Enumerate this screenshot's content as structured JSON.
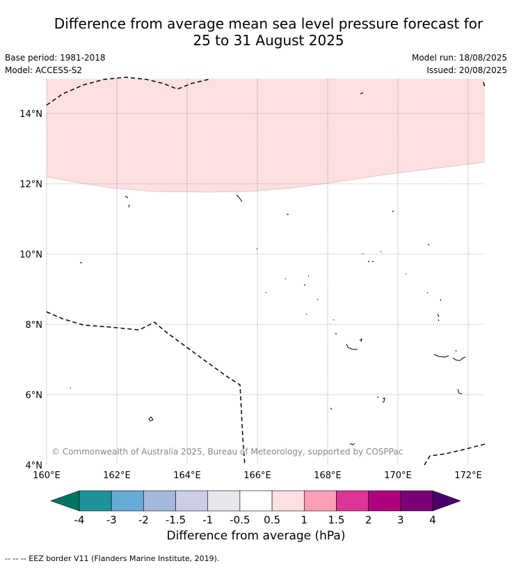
{
  "title_line1": "Difference from average mean sea level pressure forecast for",
  "title_line2": "25 to 31 August 2025",
  "base_period": "Base period: 1981-2018",
  "model": "Model: ACCESS-S2",
  "model_run": "Model run: 18/08/2025",
  "issued": "Issued: 20/08/2025",
  "copyright": "© Commonwealth of Australia 2025, Bureau of Meteorology, supported by COSPPac",
  "lat_labels": [
    "14°N",
    "12°N",
    "10°N",
    "8°N",
    "6°N",
    "4°N"
  ],
  "lon_labels": [
    "160°E",
    "162°E",
    "164°E",
    "166°E",
    "168°E",
    "170°E",
    "172°E"
  ],
  "colorbar": {
    "title": "Difference from average (hPa)",
    "tick_labels": [
      "-4",
      "-3",
      "-2",
      "-1.5",
      "-1",
      "-0.5",
      "0.5",
      "1",
      "1.5",
      "2",
      "3",
      "4"
    ],
    "colors": [
      "#007563",
      "#1e9399",
      "#66abd6",
      "#a5b8db",
      "#cccde7",
      "#e9e7ec",
      "#ffffff",
      "#fde0e0",
      "#fa9fb5",
      "#dd3497",
      "#ae017e",
      "#7a0177",
      "#49006a"
    ]
  },
  "shaded_region_color": "#fde0e0",
  "footer": "--  --  -- EEZ border V11 (Flanders Marine Institute, 2019)."
}
